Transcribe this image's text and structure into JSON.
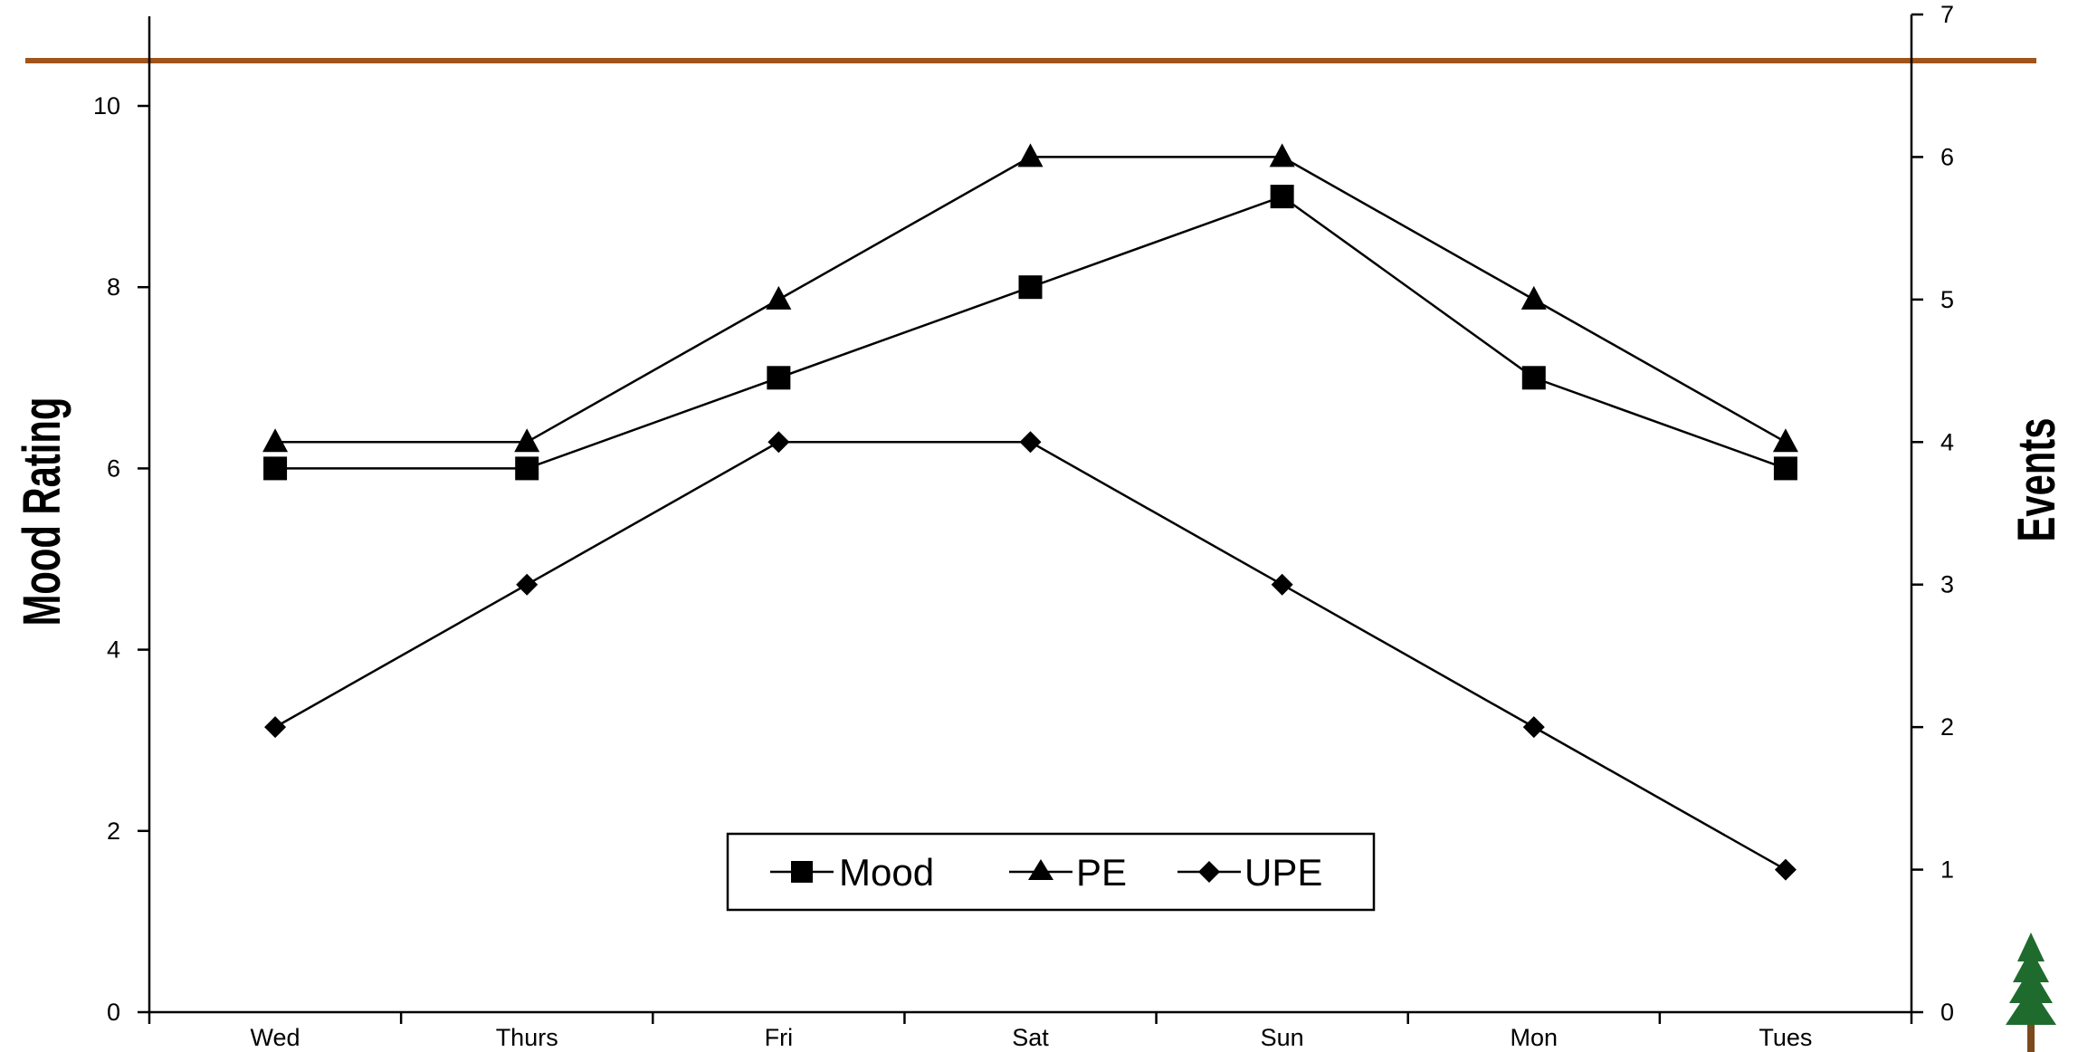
{
  "chart_data": {
    "type": "line",
    "title": "",
    "categories": [
      "Wed",
      "Thurs",
      "Fri",
      "Sat",
      "Sun",
      "Mon",
      "Tues"
    ],
    "ylabel": "Mood Rating",
    "ylim": [
      0,
      10
    ],
    "yticks": [
      "0",
      "2",
      "4",
      "6",
      "8",
      "10"
    ],
    "y2label": "Events",
    "y2lim": [
      0,
      7
    ],
    "y2ticks": [
      "0",
      "1",
      "2",
      "3",
      "4",
      "5",
      "6",
      "7"
    ],
    "grid": false,
    "legend_position": "bottom-center",
    "series": [
      {
        "name": "Mood",
        "axis": "left",
        "marker": "square",
        "values": [
          6,
          6,
          7,
          8,
          9,
          7,
          6
        ]
      },
      {
        "name": "PE",
        "axis": "right",
        "marker": "triangle",
        "values": [
          4,
          4,
          5,
          6,
          6,
          5,
          4
        ]
      },
      {
        "name": "UPE",
        "axis": "right",
        "marker": "diamond",
        "values": [
          2,
          3,
          4,
          4,
          3,
          2,
          1
        ]
      }
    ]
  },
  "colors": {
    "divider_line": "#a0541a",
    "tree_icon": "#1f6b2e",
    "tree_trunk": "#7a4a1c"
  },
  "icons": {
    "decoration": "pine-tree-icon"
  }
}
